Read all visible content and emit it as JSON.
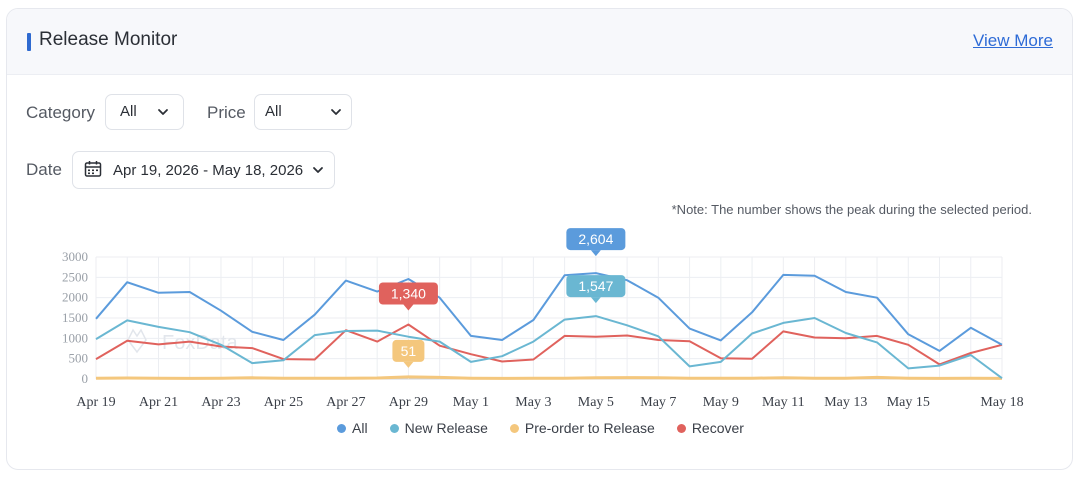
{
  "header": {
    "title": "Release Monitor",
    "view_more": "View More"
  },
  "filters": {
    "category_label": "Category",
    "category_value": "All",
    "price_label": "Price",
    "price_value": "All",
    "date_label": "Date",
    "date_value": "Apr 19, 2026 - May 18, 2026"
  },
  "note": "*Note: The number shows the peak during the selected period.",
  "watermark": "FoxData",
  "colors": {
    "all": "#5b9bdc",
    "new_release": "#6ab7d2",
    "preorder": "#f4c77d",
    "recover": "#e0625d",
    "accent": "#2f6ad0"
  },
  "chart_data": {
    "type": "line",
    "x": [
      "Apr 19",
      "Apr 20",
      "Apr 21",
      "Apr 22",
      "Apr 23",
      "Apr 24",
      "Apr 25",
      "Apr 26",
      "Apr 27",
      "Apr 28",
      "Apr 29",
      "Apr 30",
      "May 1",
      "May 2",
      "May 3",
      "May 4",
      "May 5",
      "May 6",
      "May 7",
      "May 8",
      "May 9",
      "May 10",
      "May 11",
      "May 12",
      "May 13",
      "May 14",
      "May 15",
      "May 16",
      "May 17",
      "May 18"
    ],
    "tick_labels": [
      "Apr 19",
      "Apr 21",
      "Apr 23",
      "Apr 25",
      "Apr 27",
      "Apr 29",
      "May 1",
      "May 3",
      "May 5",
      "May 7",
      "May 9",
      "May 11",
      "May 13",
      "May 15",
      "May 18"
    ],
    "y_ticks": [
      "0",
      "500",
      "1000",
      "1500",
      "2000",
      "2500",
      "3000"
    ],
    "ylim": [
      0,
      3000
    ],
    "grid": true,
    "legend": "bottom",
    "series": [
      {
        "name": "All",
        "color": "#5b9bdc",
        "peak_label": "2,604",
        "peak_index": 16,
        "values": [
          1480,
          2380,
          2120,
          2140,
          1680,
          1160,
          960,
          1580,
          2420,
          2150,
          2460,
          2000,
          1060,
          960,
          1450,
          2550,
          2604,
          2430,
          2000,
          1240,
          950,
          1640,
          2560,
          2540,
          2140,
          2000,
          1100,
          690,
          1260,
          840
        ]
      },
      {
        "name": "New Release",
        "color": "#6ab7d2",
        "peak_label": "1,547",
        "peak_index": 16,
        "values": [
          980,
          1440,
          1280,
          1150,
          840,
          390,
          460,
          1080,
          1180,
          1190,
          1040,
          920,
          420,
          560,
          920,
          1460,
          1547,
          1320,
          1050,
          310,
          420,
          1120,
          1380,
          1500,
          1130,
          900,
          260,
          330,
          590,
          20
        ]
      },
      {
        "name": "Pre-order to Release",
        "color": "#f4c77d",
        "peak_label": "51",
        "peak_index": 10,
        "values": [
          20,
          25,
          20,
          15,
          20,
          30,
          20,
          20,
          20,
          25,
          51,
          40,
          20,
          15,
          20,
          20,
          30,
          35,
          30,
          20,
          20,
          20,
          30,
          20,
          20,
          40,
          20,
          15,
          20,
          15
        ]
      },
      {
        "name": "Recover",
        "color": "#e0625d",
        "peak_label": "1,340",
        "peak_index": 10,
        "values": [
          490,
          940,
          850,
          920,
          800,
          760,
          490,
          480,
          1200,
          920,
          1340,
          820,
          610,
          430,
          480,
          1060,
          1040,
          1070,
          960,
          930,
          510,
          500,
          1170,
          1020,
          1000,
          1060,
          840,
          360,
          640,
          840
        ]
      }
    ]
  }
}
